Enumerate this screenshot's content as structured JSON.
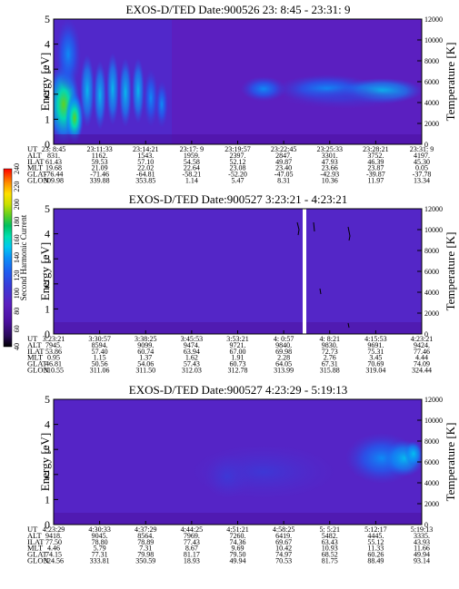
{
  "colors": {
    "background_purple": "#5b1fc0",
    "colormap": [
      "#000000",
      "#2a0a5a",
      "#4b0f9e",
      "#5b1fc0",
      "#3a3ad8",
      "#1f5cf0",
      "#0a90f8",
      "#00c8f0",
      "#00e0b0",
      "#00c060",
      "#60d020",
      "#c8e000",
      "#ffe000",
      "#ff9000",
      "#ff2000",
      "#ff0000"
    ],
    "saturated_gap": "#ffffff"
  },
  "colorbar": {
    "label": "Second Harmonic Current",
    "ticks": [
      "40",
      "60",
      "80",
      "100",
      "120",
      "140",
      "160",
      "180",
      "200",
      "220",
      "240"
    ]
  },
  "chart_data": [
    {
      "type": "heatmap",
      "title": "EXOS-D/TED   Date:900526  23: 8:45 - 23:31: 9",
      "ylabel_left": "Energy [eV]",
      "ylabel_right": "Temperature [K]",
      "ylim": [
        0,
        5
      ],
      "y_ticks": [
        "0",
        "1",
        "2",
        "3",
        "4",
        "5"
      ],
      "right_ylim": [
        0,
        12000
      ],
      "right_ticks": [
        "0",
        "2000",
        "4000",
        "6000",
        "8000",
        "10000",
        "12000"
      ],
      "orbit_rows": [
        {
          "label": "UT",
          "values": [
            "23: 8:45",
            "23:11:33",
            "23:14:21",
            "23:17: 9",
            "23:19:57",
            "23:22:45",
            "23:25:33",
            "23:28:21",
            "23:31: 9"
          ]
        },
        {
          "label": "ALT",
          "values": [
            "831.",
            "1162.",
            "1543.",
            "1959.",
            "2397.",
            "2847.",
            "3301.",
            "3752.",
            "4197."
          ]
        },
        {
          "label": "ILAT",
          "values": [
            "61.43",
            "59.53",
            "57.10",
            "54.58",
            "52.12",
            "49.87",
            "47.93",
            "46.39",
            "45.30"
          ]
        },
        {
          "label": "MLT",
          "values": [
            "19.68",
            "21.09",
            "22.02",
            "22.64",
            "23.08",
            "23.40",
            "23.66",
            "23.87",
            "0.05"
          ]
        },
        {
          "label": "GLAT",
          "values": [
            "-76.44",
            "-71.46",
            "-64.81",
            "-58.21",
            "-52.20",
            "-47.05",
            "-42.93",
            "-39.87",
            "-37.78"
          ]
        },
        {
          "label": "GLON",
          "values": [
            "309.98",
            "339.88",
            "353.85",
            "1.14",
            "5.47",
            "8.31",
            "10.36",
            "11.97",
            "13.34"
          ]
        }
      ]
    },
    {
      "type": "heatmap",
      "title": "EXOS-D/TED   Date:900527  3:23:21 - 4:23:21",
      "ylabel_left": "Energy [eV]",
      "ylabel_right": "Temperature [K]",
      "ylim": [
        0,
        5
      ],
      "y_ticks": [
        "0",
        "1",
        "2",
        "3",
        "4",
        "5"
      ],
      "right_ylim": [
        0,
        12000
      ],
      "right_ticks": [
        "0",
        "2000",
        "4000",
        "6000",
        "8000",
        "10000",
        "12000"
      ],
      "orbit_rows": [
        {
          "label": "UT",
          "values": [
            "3:23:21",
            "3:30:57",
            "3:38:25",
            "3:45:53",
            "3:53:21",
            "4: 0:57",
            "4: 8:21",
            "4:15:53",
            "4:23:21"
          ]
        },
        {
          "label": "ALT",
          "values": [
            "7945.",
            "8594.",
            "9099.",
            "9474.",
            "9721.",
            "9840.",
            "9830.",
            "9691.",
            "9424."
          ]
        },
        {
          "label": "ILAT",
          "values": [
            "53.86",
            "57.40",
            "60.74",
            "63.94",
            "67.00",
            "69.98",
            "72.73",
            "75.31",
            "77.46"
          ]
        },
        {
          "label": "MLT",
          "values": [
            "0.95",
            "1.15",
            "1.37",
            "1.62",
            "1.91",
            "2.28",
            "2.76",
            "3.45",
            "4.44"
          ]
        },
        {
          "label": "GLAT",
          "values": [
            "46.81",
            "50.56",
            "54.06",
            "57.43",
            "60.73",
            "64.05",
            "67.31",
            "70.69",
            "74.09"
          ]
        },
        {
          "label": "GLON",
          "values": [
            "310.55",
            "311.06",
            "311.50",
            "312.03",
            "312.78",
            "313.99",
            "315.88",
            "319.04",
            "324.44"
          ]
        }
      ]
    },
    {
      "type": "heatmap",
      "title": "EXOS-D/TED   Date:900527  4:23:29 - 5:19:13",
      "ylabel_left": "Energy [eV]",
      "ylabel_right": "Temperature [K]",
      "ylim": [
        0,
        5
      ],
      "y_ticks": [
        "0",
        "1",
        "2",
        "3",
        "4",
        "5"
      ],
      "right_ylim": [
        0,
        12000
      ],
      "right_ticks": [
        "0",
        "2000",
        "4000",
        "6000",
        "8000",
        "10000",
        "12000"
      ],
      "orbit_rows": [
        {
          "label": "UT",
          "values": [
            "4:23:29",
            "4:30:33",
            "4:37:29",
            "4:44:25",
            "4:51:21",
            "4:58:25",
            "5: 5:21",
            "5:12:17",
            "5:19:13"
          ]
        },
        {
          "label": "ALT",
          "values": [
            "9418.",
            "9045.",
            "8564.",
            "7969.",
            "7260.",
            "6419.",
            "5482.",
            "4445.",
            "3335."
          ]
        },
        {
          "label": "ILAT",
          "values": [
            "77.50",
            "78.80",
            "78.89",
            "77.43",
            "74.36",
            "69.67",
            "63.43",
            "55.12",
            "43.93"
          ]
        },
        {
          "label": "MLT",
          "values": [
            "4.46",
            "5.79",
            "7.31",
            "8.67",
            "9.69",
            "10.42",
            "10.93",
            "11.33",
            "11.66"
          ]
        },
        {
          "label": "GLAT",
          "values": [
            "74.15",
            "77.31",
            "79.98",
            "81.17",
            "79.50",
            "74.97",
            "68.52",
            "60.26",
            "49.94"
          ]
        },
        {
          "label": "GLON",
          "values": [
            "324.56",
            "333.81",
            "350.59",
            "18.93",
            "49.94",
            "70.53",
            "81.75",
            "88.49",
            "93.14"
          ]
        }
      ]
    }
  ]
}
